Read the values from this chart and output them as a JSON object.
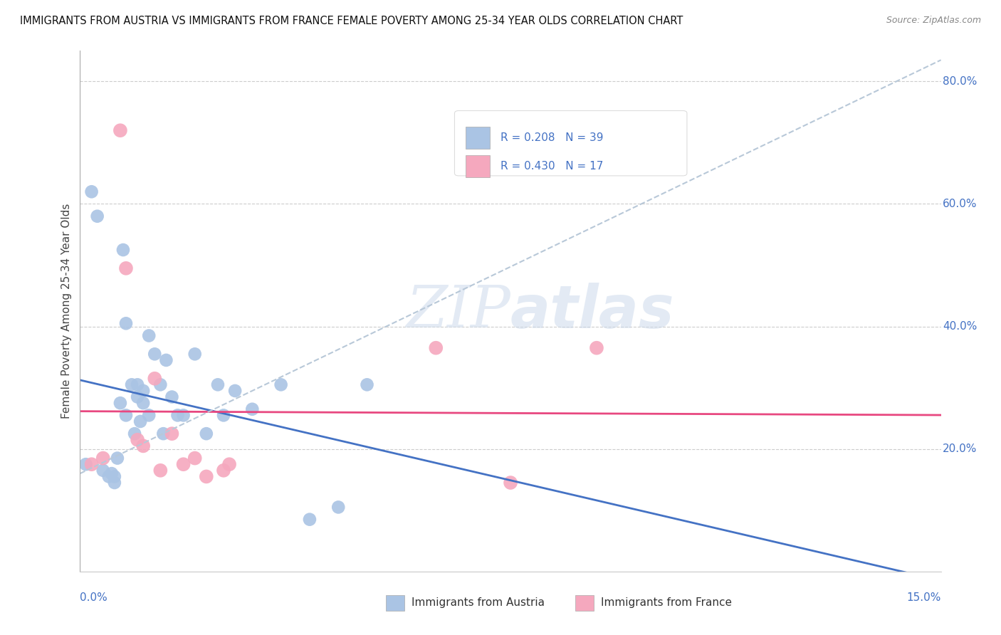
{
  "title": "IMMIGRANTS FROM AUSTRIA VS IMMIGRANTS FROM FRANCE FEMALE POVERTY AMONG 25-34 YEAR OLDS CORRELATION CHART",
  "source": "Source: ZipAtlas.com",
  "ylabel": "Female Poverty Among 25-34 Year Olds",
  "R_austria": "0.208",
  "N_austria": "39",
  "R_france": "0.430",
  "N_france": "17",
  "color_austria": "#aac4e4",
  "color_france": "#f5a8be",
  "trendline_austria": "#4472c4",
  "trendline_france": "#e84880",
  "trendline_dashed_color": "#b8c8d8",
  "axis_label_color": "#4472c4",
  "legend_text_color": "#4472c4",
  "legend_austria": "Immigrants from Austria",
  "legend_france": "Immigrants from France",
  "austria_x": [
    0.001,
    0.002,
    0.003,
    0.004,
    0.005,
    0.0055,
    0.006,
    0.006,
    0.0065,
    0.007,
    0.0075,
    0.008,
    0.008,
    0.009,
    0.0095,
    0.01,
    0.01,
    0.0105,
    0.011,
    0.011,
    0.012,
    0.012,
    0.013,
    0.014,
    0.0145,
    0.015,
    0.016,
    0.017,
    0.018,
    0.02,
    0.022,
    0.024,
    0.025,
    0.027,
    0.03,
    0.035,
    0.04,
    0.045,
    0.05
  ],
  "austria_y": [
    0.175,
    0.62,
    0.58,
    0.165,
    0.155,
    0.16,
    0.145,
    0.155,
    0.185,
    0.275,
    0.525,
    0.255,
    0.405,
    0.305,
    0.225,
    0.285,
    0.305,
    0.245,
    0.275,
    0.295,
    0.385,
    0.255,
    0.355,
    0.305,
    0.225,
    0.345,
    0.285,
    0.255,
    0.255,
    0.355,
    0.225,
    0.305,
    0.255,
    0.295,
    0.265,
    0.305,
    0.085,
    0.105,
    0.305
  ],
  "france_x": [
    0.002,
    0.004,
    0.007,
    0.008,
    0.01,
    0.011,
    0.013,
    0.014,
    0.016,
    0.018,
    0.02,
    0.022,
    0.025,
    0.026,
    0.062,
    0.075,
    0.09
  ],
  "france_y": [
    0.175,
    0.185,
    0.72,
    0.495,
    0.215,
    0.205,
    0.315,
    0.165,
    0.225,
    0.175,
    0.185,
    0.155,
    0.165,
    0.175,
    0.365,
    0.145,
    0.365
  ],
  "xmax": 0.15,
  "ymax": 0.85,
  "yticks": [
    0.2,
    0.4,
    0.6,
    0.8
  ],
  "ytick_labels": [
    "20.0%",
    "40.0%",
    "60.0%",
    "80.0%"
  ],
  "dashed_slope": 4.5,
  "dashed_intercept": 0.16
}
